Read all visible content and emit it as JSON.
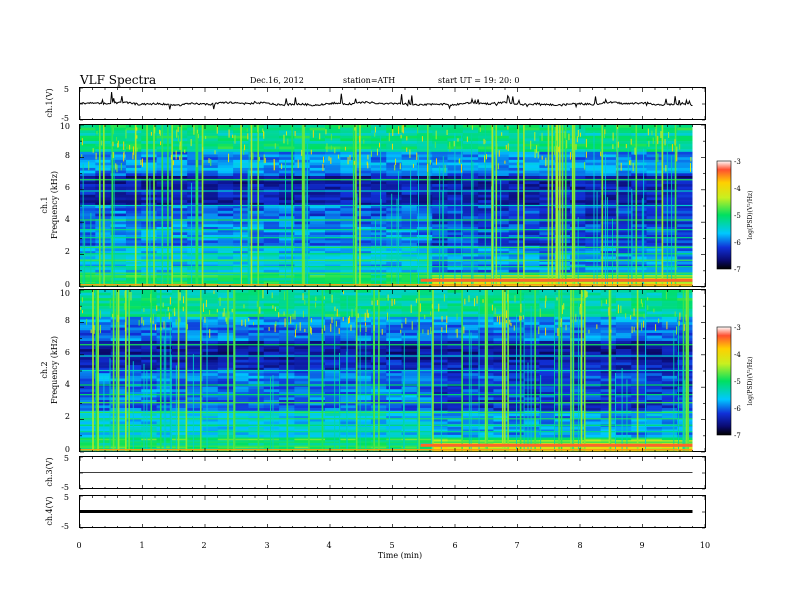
{
  "header": {
    "title": "VLF  Spectra",
    "date": "Dec.16, 2012",
    "station": "station=ATH",
    "start": "start  UT  =    19: 20: 0"
  },
  "chart_data": [
    {
      "type": "line",
      "panel": "ch1-waveform",
      "ylabel": "ch.1(V)",
      "ylim": [
        -5,
        5
      ],
      "yticks": [
        "5",
        "-5"
      ],
      "level_approx": 0.5,
      "color": "#000000"
    },
    {
      "type": "heatmap",
      "panel": "ch1-spectrogram",
      "ylabel_channel": "ch.1",
      "ylabel": "Frequency  (kHz)",
      "ylim": [
        0,
        10
      ],
      "yticks": [
        "0",
        "2",
        "4",
        "6",
        "8",
        "10"
      ],
      "colorbar": {
        "label": "log(PSD)(V²/Hz)",
        "range": [
          -7,
          -3
        ],
        "ticks": [
          "-3",
          "-4",
          "-5",
          "-6",
          "-7"
        ]
      },
      "change_time_min": 5.45
    },
    {
      "type": "heatmap",
      "panel": "ch2-spectrogram",
      "ylabel_channel": "ch.2",
      "ylabel": "Frequency  (kHz)",
      "ylim": [
        0,
        10
      ],
      "yticks": [
        "0",
        "2",
        "4",
        "6",
        "8",
        "10"
      ],
      "colorbar": {
        "label": "log(PSD)(V²/Hz)",
        "range": [
          -7,
          -3
        ],
        "ticks": [
          "-3",
          "-4",
          "-5",
          "-6",
          "-7"
        ]
      },
      "change_time_min": 5.45
    },
    {
      "type": "line",
      "panel": "ch3-waveform",
      "ylabel": "ch.3(V)",
      "ylim": [
        -5,
        5
      ],
      "yticks": [
        "5",
        "-5"
      ],
      "level_approx": 0.0,
      "color": "#000000"
    },
    {
      "type": "line",
      "panel": "ch4-waveform",
      "ylabel": "ch.4(V)",
      "ylim": [
        -5,
        5
      ],
      "yticks": [
        "5",
        "-5"
      ],
      "level_approx": 0.0,
      "color": "#000000"
    }
  ],
  "x_axis": {
    "label": "Time  (min)",
    "xlim": [
      0,
      10
    ],
    "data_end_min": 9.8,
    "ticks": [
      "0",
      "1",
      "2",
      "3",
      "4",
      "5",
      "6",
      "7",
      "8",
      "9",
      "10"
    ]
  }
}
